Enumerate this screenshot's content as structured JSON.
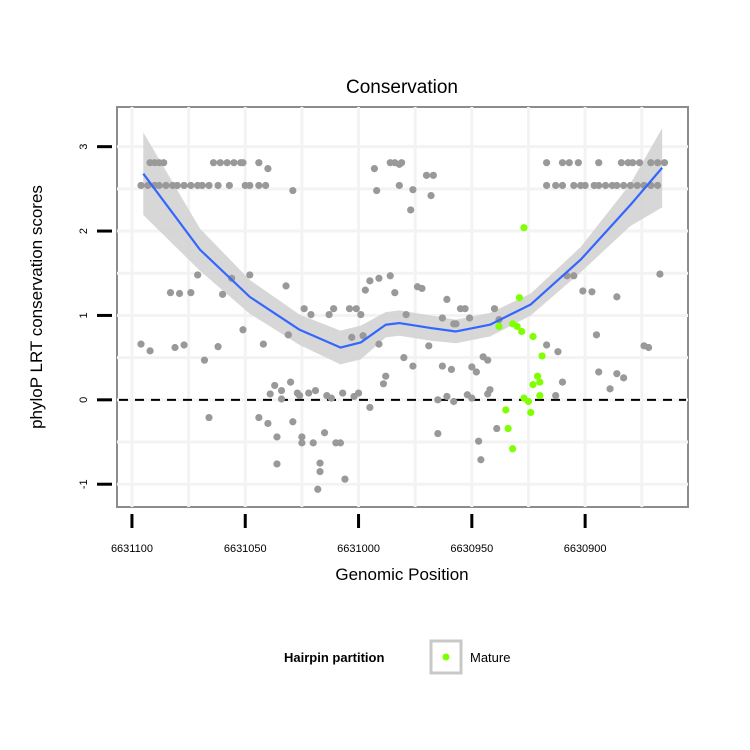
{
  "chart_data": {
    "type": "scatter",
    "title": "Conservation",
    "xlabel": "Genomic Position",
    "ylabel": "phyloP LRT conservation scores",
    "xlim": [
      6631106.6,
      6630854.6
    ],
    "x_reversed": true,
    "ylim": [
      -1.27,
      3.47
    ],
    "xticks": [
      6631100,
      6631050,
      6631000,
      6630950,
      6630900
    ],
    "xtick_labels": [
      "6631100",
      "6631050",
      "6631000",
      "6630950",
      "6630900"
    ],
    "yticks": [
      3,
      2,
      1,
      0,
      -1
    ],
    "ytick_labels": [
      "3",
      "2",
      "1",
      "0",
      "-1"
    ],
    "grid": true,
    "reference_line": {
      "y": 0,
      "style": "dashed"
    },
    "legend": {
      "title": "Hairpin partition",
      "placement": "bottom",
      "entries": [
        {
          "label": "Mature",
          "color": "#7fff00"
        }
      ]
    },
    "colors": {
      "other": "#999999",
      "mature": "#7fff00",
      "smooth": "#3366ff",
      "band": "#d3d3d3"
    },
    "series": [
      {
        "name": "Other",
        "color": "#999999",
        "points": [
          [
            6631092,
            2.81
          ],
          [
            6631090,
            2.81
          ],
          [
            6631088,
            2.81
          ],
          [
            6631086,
            2.81
          ],
          [
            6631064,
            2.81
          ],
          [
            6631061,
            2.81
          ],
          [
            6631058,
            2.81
          ],
          [
            6631055,
            2.81
          ],
          [
            6631052,
            2.81
          ],
          [
            6631051,
            2.81
          ],
          [
            6631044,
            2.81
          ],
          [
            6630986,
            2.81
          ],
          [
            6630984,
            2.81
          ],
          [
            6630981,
            2.81
          ],
          [
            6630982,
            2.79
          ],
          [
            6630917,
            2.81
          ],
          [
            6630910,
            2.81
          ],
          [
            6630907,
            2.81
          ],
          [
            6630903,
            2.81
          ],
          [
            6630894,
            2.81
          ],
          [
            6630884,
            2.81
          ],
          [
            6630881,
            2.81
          ],
          [
            6630879,
            2.81
          ],
          [
            6630876,
            2.81
          ],
          [
            6630871,
            2.81
          ],
          [
            6630868,
            2.81
          ],
          [
            6630865,
            2.81
          ],
          [
            6631040,
            2.74
          ],
          [
            6630993,
            2.74
          ],
          [
            6631096,
            2.54
          ],
          [
            6631093,
            2.54
          ],
          [
            6631090,
            2.54
          ],
          [
            6631088,
            2.54
          ],
          [
            6631085,
            2.54
          ],
          [
            6631082,
            2.54
          ],
          [
            6631080,
            2.54
          ],
          [
            6631077,
            2.54
          ],
          [
            6631074,
            2.54
          ],
          [
            6631071,
            2.54
          ],
          [
            6631069,
            2.54
          ],
          [
            6631066,
            2.54
          ],
          [
            6631062,
            2.54
          ],
          [
            6631057,
            2.54
          ],
          [
            6631050,
            2.54
          ],
          [
            6631048,
            2.54
          ],
          [
            6631044,
            2.54
          ],
          [
            6631041,
            2.54
          ],
          [
            6630982,
            2.54
          ],
          [
            6630917,
            2.54
          ],
          [
            6630913,
            2.54
          ],
          [
            6630910,
            2.54
          ],
          [
            6630905,
            2.54
          ],
          [
            6630902,
            2.54
          ],
          [
            6630900,
            2.54
          ],
          [
            6630896,
            2.54
          ],
          [
            6630894,
            2.54
          ],
          [
            6630891,
            2.54
          ],
          [
            6630888,
            2.54
          ],
          [
            6630886,
            2.54
          ],
          [
            6630883,
            2.54
          ],
          [
            6630880,
            2.54
          ],
          [
            6630877,
            2.54
          ],
          [
            6630874,
            2.54
          ],
          [
            6630871,
            2.54
          ],
          [
            6630868,
            2.54
          ],
          [
            6631029,
            2.48
          ],
          [
            6630992,
            2.48
          ],
          [
            6630970,
            2.66
          ],
          [
            6630967,
            2.66
          ],
          [
            6630976,
            2.49
          ],
          [
            6630968,
            2.42
          ],
          [
            6630977,
            2.25
          ],
          [
            6631071,
            1.48
          ],
          [
            6631083,
            1.27
          ],
          [
            6631079,
            1.26
          ],
          [
            6631074,
            1.27
          ],
          [
            6631060,
            1.25
          ],
          [
            6631056,
            1.44
          ],
          [
            6631048,
            1.48
          ],
          [
            6631032,
            1.35
          ],
          [
            6631024,
            1.08
          ],
          [
            6631021,
            1.01
          ],
          [
            6631013,
            1.01
          ],
          [
            6631011,
            1.08
          ],
          [
            6631004,
            1.08
          ],
          [
            6631001,
            1.08
          ],
          [
            6630999,
            1.01
          ],
          [
            6630997,
            1.3
          ],
          [
            6630995,
            1.41
          ],
          [
            6630991,
            1.44
          ],
          [
            6630986,
            1.47
          ],
          [
            6630984,
            1.27
          ],
          [
            6631096,
            0.66
          ],
          [
            6631092,
            0.58
          ],
          [
            6631081,
            0.62
          ],
          [
            6631077,
            0.65
          ],
          [
            6631068,
            0.47
          ],
          [
            6631062,
            0.63
          ],
          [
            6631051,
            0.83
          ],
          [
            6631042,
            0.66
          ],
          [
            6631031,
            0.77
          ],
          [
            6631003,
            0.74
          ],
          [
            6630998,
            0.76
          ],
          [
            6630991,
            0.66
          ],
          [
            6630980,
            0.5
          ],
          [
            6630988,
            0.28
          ],
          [
            6630989,
            0.19
          ],
          [
            6631037,
            0.17
          ],
          [
            6631034,
            0.11
          ],
          [
            6631030,
            0.21
          ],
          [
            6631039,
            0.07
          ],
          [
            6631027,
            0.08
          ],
          [
            6631026,
            0.05
          ],
          [
            6631022,
            0.08
          ],
          [
            6631019,
            0.11
          ],
          [
            6631014,
            0.05
          ],
          [
            6631012,
            0.02
          ],
          [
            6631007,
            0.08
          ],
          [
            6631002,
            0.04
          ],
          [
            6631000,
            0.08
          ],
          [
            6631034,
            0.01
          ],
          [
            6630995,
            -0.09
          ],
          [
            6631066,
            -0.21
          ],
          [
            6631044,
            -0.21
          ],
          [
            6631040,
            -0.28
          ],
          [
            6631029,
            -0.26
          ],
          [
            6631036,
            -0.44
          ],
          [
            6631025,
            -0.44
          ],
          [
            6631025,
            -0.51
          ],
          [
            6631020,
            -0.51
          ],
          [
            6631015,
            -0.39
          ],
          [
            6631010,
            -0.51
          ],
          [
            6631008,
            -0.51
          ],
          [
            6631036,
            -0.76
          ],
          [
            6631017,
            -0.75
          ],
          [
            6631017,
            -0.85
          ],
          [
            6631006,
            -0.94
          ],
          [
            6631018,
            -1.06
          ],
          [
            6630974,
            1.34
          ],
          [
            6630972,
            1.32
          ],
          [
            6630961,
            1.19
          ],
          [
            6630955,
            1.08
          ],
          [
            6630953,
            1.08
          ],
          [
            6630940,
            1.08
          ],
          [
            6630979,
            1.01
          ],
          [
            6630963,
            0.97
          ],
          [
            6630958,
            0.9
          ],
          [
            6630957,
            0.9
          ],
          [
            6630951,
            0.97
          ],
          [
            6630938,
            0.95
          ],
          [
            6630969,
            0.64
          ],
          [
            6630976,
            0.4
          ],
          [
            6630963,
            0.4
          ],
          [
            6630959,
            0.36
          ],
          [
            6630950,
            0.39
          ],
          [
            6630948,
            0.33
          ],
          [
            6630945,
            0.51
          ],
          [
            6630943,
            0.47
          ],
          [
            6630942,
            0.12
          ],
          [
            6630943,
            0.07
          ],
          [
            6630961,
            0.04
          ],
          [
            6630965,
            0.0
          ],
          [
            6630958,
            -0.02
          ],
          [
            6630952,
            0.06
          ],
          [
            6630950,
            0.02
          ],
          [
            6630965,
            -0.4
          ],
          [
            6630947,
            -0.49
          ],
          [
            6630946,
            -0.71
          ],
          [
            6630939,
            -0.34
          ],
          [
            6630908,
            1.47
          ],
          [
            6630905,
            1.47
          ],
          [
            6630901,
            1.29
          ],
          [
            6630897,
            1.28
          ],
          [
            6630886,
            1.22
          ],
          [
            6630867,
            1.49
          ],
          [
            6630895,
            0.77
          ],
          [
            6630917,
            0.65
          ],
          [
            6630912,
            0.57
          ],
          [
            6630874,
            0.64
          ],
          [
            6630872,
            0.62
          ],
          [
            6630894,
            0.33
          ],
          [
            6630886,
            0.31
          ],
          [
            6630883,
            0.26
          ],
          [
            6630889,
            0.13
          ],
          [
            6630910,
            0.21
          ],
          [
            6630913,
            0.05
          ]
        ]
      },
      {
        "name": "Mature",
        "color": "#7fff00",
        "points": [
          [
            6630927,
            2.04
          ],
          [
            6630929,
            1.21
          ],
          [
            6630938,
            0.87
          ],
          [
            6630932,
            0.9
          ],
          [
            6630930,
            0.87
          ],
          [
            6630928,
            0.81
          ],
          [
            6630923,
            0.75
          ],
          [
            6630919,
            0.52
          ],
          [
            6630921,
            0.28
          ],
          [
            6630923,
            0.18
          ],
          [
            6630920,
            0.21
          ],
          [
            6630927,
            0.02
          ],
          [
            6630925,
            -0.02
          ],
          [
            6630920,
            0.05
          ],
          [
            6630924,
            -0.15
          ],
          [
            6630935,
            -0.12
          ],
          [
            6630934,
            -0.34
          ],
          [
            6630932,
            -0.58
          ]
        ]
      }
    ],
    "smooth": {
      "method": "loess",
      "x": [
        6631095,
        6631070,
        6631048,
        6631026,
        6631008,
        6630999,
        6630988,
        6630982,
        6630968,
        6630957,
        6630942,
        6630924,
        6630902,
        6630880,
        6630866
      ],
      "y": [
        2.68,
        1.78,
        1.22,
        0.83,
        0.62,
        0.68,
        0.89,
        0.91,
        0.85,
        0.81,
        0.89,
        1.13,
        1.66,
        2.31,
        2.75
      ],
      "se": [
        0.49,
        0.25,
        0.2,
        0.18,
        0.2,
        0.2,
        0.15,
        0.15,
        0.15,
        0.14,
        0.14,
        0.13,
        0.15,
        0.25,
        0.47
      ]
    }
  }
}
